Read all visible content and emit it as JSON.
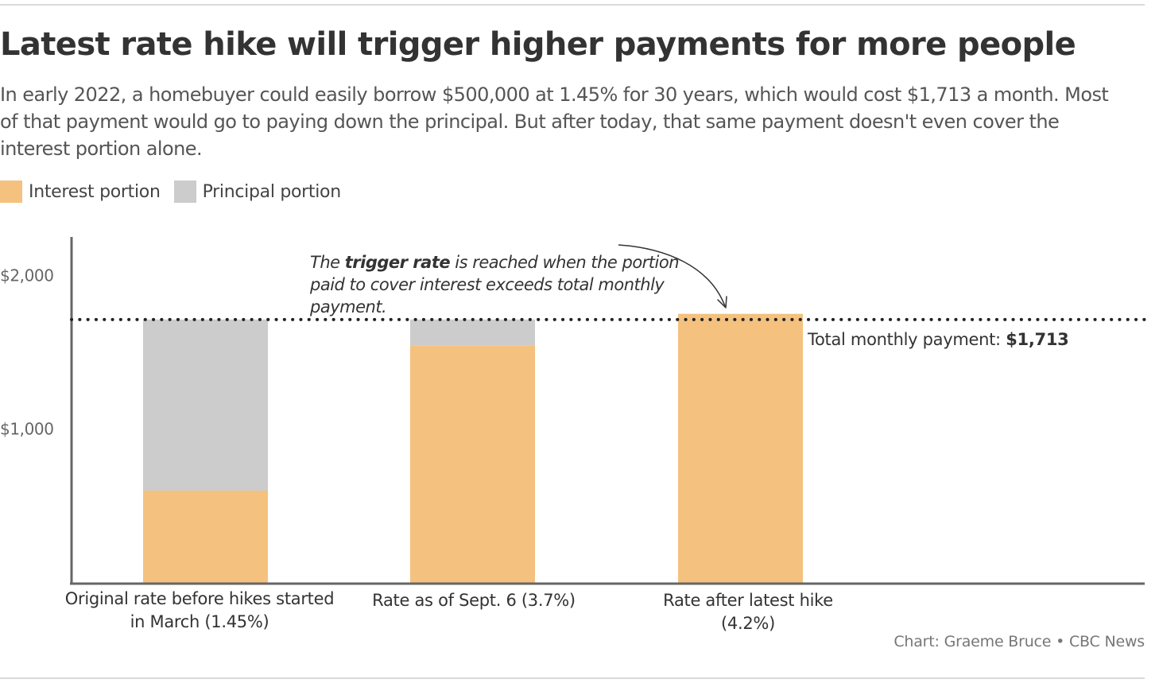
{
  "header": {
    "title": "Latest rate hike will trigger higher payments for more people",
    "subtitle": "In early 2022, a homebuyer could easily borrow $500,000 at 1.45% for 30 years, which would cost $1,713 a month. Most of that payment would go to paying down the principal. But after today, that same payment doesn't even cover the interest portion alone."
  },
  "colors": {
    "interest": "#f4c17e",
    "principal": "#cccccc",
    "axis": "#666666",
    "reference_line": "#222222"
  },
  "annotation": {
    "pre": "The ",
    "bold": "trigger rate",
    "post": " is reached when the portion paid to cover interest exceeds total monthly payment."
  },
  "reference": {
    "label": "Total monthly payment: ",
    "value": "$1,713"
  },
  "footer": {
    "credit": "Chart: Graeme Bruce • CBC News"
  },
  "chart_data": {
    "type": "bar",
    "stacked": true,
    "categories": [
      "Original rate before hikes started in March (1.45%)",
      "Rate as of Sept. 6 (3.7%)",
      "Rate after latest hike (4.2%)"
    ],
    "series": [
      {
        "name": "Interest portion",
        "values": [
          600,
          1545,
          1750
        ]
      },
      {
        "name": "Principal portion",
        "values": [
          1113,
          168,
          0
        ]
      }
    ],
    "reference_line": {
      "value": 1713,
      "style": "dotted"
    },
    "y_ticks": [
      {
        "value": 1000,
        "label": "$1,000"
      },
      {
        "value": 2000,
        "label": "$2,000"
      }
    ],
    "ylim": [
      0,
      2250
    ],
    "grid": false,
    "legend": "top-left"
  }
}
